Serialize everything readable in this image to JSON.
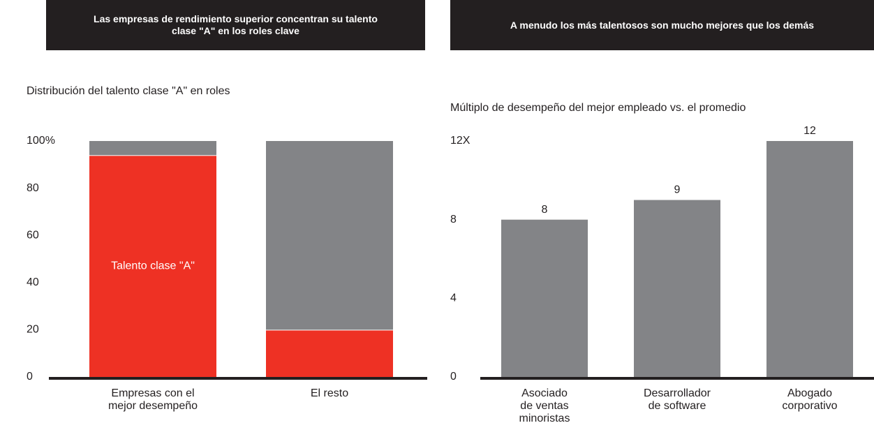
{
  "chart_data": [
    {
      "type": "stacked_bar",
      "title": "Las empresas de rendimiento superior concentran su talento clase \"A\" en los roles clave",
      "subtitle": "Distribución del talento clase \"A\" en roles",
      "categories": [
        [
          "Empresas con el",
          "mejor desempeño"
        ],
        [
          "El resto"
        ]
      ],
      "series": [
        {
          "name": "Talento clase \"A\"",
          "color": "#ee3124",
          "values": [
            94,
            20
          ]
        },
        {
          "color": "#838487",
          "values": [
            6,
            80
          ]
        }
      ],
      "ylim": [
        0,
        100
      ],
      "yticks": [
        0,
        20,
        40,
        60,
        80,
        {
          "value": 100,
          "label": "100%"
        }
      ]
    },
    {
      "type": "bar",
      "title": "A menudo los más talentosos son mucho mejores que los demás",
      "subtitle": "Múltiplo de desempeño del mejor empleado vs. el promedio",
      "categories": [
        [
          "Asociado",
          "de ventas",
          "minoristas"
        ],
        [
          "Desarrollador",
          "de software"
        ],
        [
          "Abogado",
          "corporativo"
        ]
      ],
      "values": [
        8,
        9,
        12
      ],
      "color": "#838487",
      "ylim": [
        0,
        12
      ],
      "yticks": [
        0,
        4,
        8,
        {
          "value": 12,
          "label": "12X"
        }
      ]
    }
  ]
}
